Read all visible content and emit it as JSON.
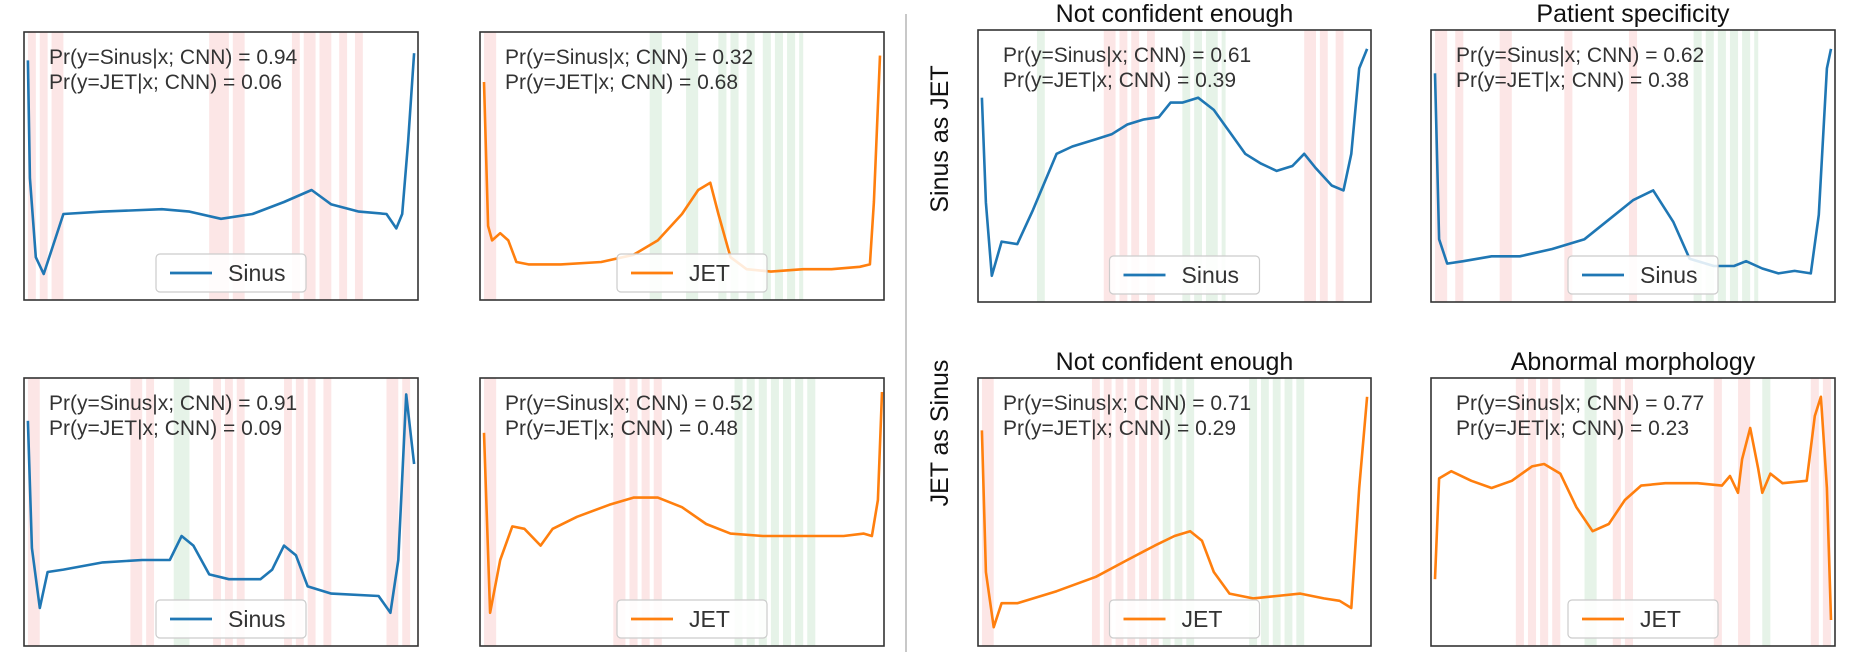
{
  "figure": {
    "row_labels": [
      "Sinus as JET",
      "JET as Sinus"
    ],
    "colors": {
      "Sinus": "#1f77b4",
      "JET": "#ff7f0e",
      "important": "#e8403a",
      "supporting": "#3aa64a"
    }
  },
  "chart_data": [
    {
      "type": "line",
      "title": "",
      "series": [
        {
          "name": "Sinus"
        }
      ],
      "legend": "lower-center",
      "ylim": [
        0,
        1
      ],
      "annotations": [
        "Pr(y=Sinus|x; CNN) = 0.94",
        "Pr(y=JET|x; CNN) = 0.06"
      ],
      "points": [
        [
          0.01,
          0.94
        ],
        [
          0.015,
          0.45
        ],
        [
          0.03,
          0.12
        ],
        [
          0.05,
          0.05
        ],
        [
          0.07,
          0.15
        ],
        [
          0.1,
          0.3
        ],
        [
          0.2,
          0.31
        ],
        [
          0.35,
          0.32
        ],
        [
          0.42,
          0.31
        ],
        [
          0.5,
          0.28
        ],
        [
          0.58,
          0.3
        ],
        [
          0.66,
          0.35
        ],
        [
          0.73,
          0.4
        ],
        [
          0.78,
          0.34
        ],
        [
          0.85,
          0.31
        ],
        [
          0.92,
          0.3
        ],
        [
          0.945,
          0.24
        ],
        [
          0.96,
          0.3
        ],
        [
          0.975,
          0.6
        ],
        [
          0.99,
          0.97
        ]
      ],
      "red_bands": [
        [
          0.01,
          0.03
        ],
        [
          0.04,
          0.06
        ],
        [
          0.07,
          0.1
        ],
        [
          0.47,
          0.52
        ],
        [
          0.53,
          0.56
        ],
        [
          0.68,
          0.7
        ],
        [
          0.71,
          0.74
        ],
        [
          0.75,
          0.78
        ],
        [
          0.8,
          0.82
        ],
        [
          0.84,
          0.86
        ]
      ],
      "green_bands": []
    },
    {
      "type": "line",
      "title": "",
      "series": [
        {
          "name": "JET"
        }
      ],
      "legend": "lower-center",
      "ylim": [
        0,
        1
      ],
      "annotations": [
        "Pr(y=Sinus|x; CNN) = 0.32",
        "Pr(y=JET|x; CNN) = 0.68"
      ],
      "points": [
        [
          0.01,
          0.85
        ],
        [
          0.02,
          0.25
        ],
        [
          0.03,
          0.19
        ],
        [
          0.05,
          0.22
        ],
        [
          0.07,
          0.19
        ],
        [
          0.09,
          0.1
        ],
        [
          0.12,
          0.09
        ],
        [
          0.2,
          0.09
        ],
        [
          0.3,
          0.1
        ],
        [
          0.38,
          0.13
        ],
        [
          0.44,
          0.19
        ],
        [
          0.5,
          0.3
        ],
        [
          0.54,
          0.4
        ],
        [
          0.57,
          0.43
        ],
        [
          0.59,
          0.3
        ],
        [
          0.62,
          0.12
        ],
        [
          0.66,
          0.07
        ],
        [
          0.72,
          0.06
        ],
        [
          0.8,
          0.07
        ],
        [
          0.87,
          0.07
        ],
        [
          0.94,
          0.08
        ],
        [
          0.965,
          0.09
        ],
        [
          0.975,
          0.35
        ],
        [
          0.99,
          0.96
        ]
      ],
      "red_bands": [
        [
          0.01,
          0.04
        ]
      ],
      "green_bands": [
        [
          0.42,
          0.45
        ],
        [
          0.51,
          0.54
        ],
        [
          0.59,
          0.61
        ],
        [
          0.62,
          0.64
        ],
        [
          0.66,
          0.68
        ],
        [
          0.7,
          0.72
        ],
        [
          0.73,
          0.75
        ],
        [
          0.76,
          0.78
        ],
        [
          0.79,
          0.8
        ]
      ]
    },
    {
      "type": "line",
      "title": "Not confident enough",
      "series": [
        {
          "name": "Sinus"
        }
      ],
      "legend": "lower-center",
      "ylim": [
        0,
        1
      ],
      "annotations": [
        "Pr(y=Sinus|x; CNN) = 0.61",
        "Pr(y=JET|x; CNN) = 0.39"
      ],
      "points": [
        [
          0.01,
          0.78
        ],
        [
          0.02,
          0.35
        ],
        [
          0.035,
          0.05
        ],
        [
          0.06,
          0.19
        ],
        [
          0.1,
          0.18
        ],
        [
          0.14,
          0.32
        ],
        [
          0.2,
          0.55
        ],
        [
          0.24,
          0.58
        ],
        [
          0.3,
          0.61
        ],
        [
          0.34,
          0.63
        ],
        [
          0.38,
          0.67
        ],
        [
          0.42,
          0.69
        ],
        [
          0.46,
          0.7
        ],
        [
          0.49,
          0.76
        ],
        [
          0.52,
          0.76
        ],
        [
          0.56,
          0.78
        ],
        [
          0.6,
          0.73
        ],
        [
          0.64,
          0.64
        ],
        [
          0.68,
          0.55
        ],
        [
          0.72,
          0.51
        ],
        [
          0.76,
          0.48
        ],
        [
          0.8,
          0.5
        ],
        [
          0.83,
          0.55
        ],
        [
          0.86,
          0.49
        ],
        [
          0.9,
          0.42
        ],
        [
          0.93,
          0.4
        ],
        [
          0.95,
          0.55
        ],
        [
          0.97,
          0.9
        ],
        [
          0.99,
          0.98
        ]
      ],
      "red_bands": [
        [
          0.32,
          0.35
        ],
        [
          0.36,
          0.38
        ],
        [
          0.39,
          0.41
        ],
        [
          0.43,
          0.45
        ],
        [
          0.83,
          0.86
        ],
        [
          0.87,
          0.89
        ],
        [
          0.91,
          0.93
        ]
      ],
      "green_bands": [
        [
          0.15,
          0.17
        ],
        [
          0.52,
          0.54
        ],
        [
          0.55,
          0.57
        ],
        [
          0.58,
          0.61
        ],
        [
          0.62,
          0.63
        ]
      ]
    },
    {
      "type": "line",
      "title": "Patient specificity",
      "series": [
        {
          "name": "Sinus"
        }
      ],
      "legend": "lower-center",
      "ylim": [
        0,
        1
      ],
      "annotations": [
        "Pr(y=Sinus|x; CNN) = 0.62",
        "Pr(y=JET|x; CNN) = 0.38"
      ],
      "points": [
        [
          0.01,
          0.88
        ],
        [
          0.02,
          0.2
        ],
        [
          0.04,
          0.1
        ],
        [
          0.08,
          0.11
        ],
        [
          0.15,
          0.13
        ],
        [
          0.22,
          0.13
        ],
        [
          0.3,
          0.16
        ],
        [
          0.38,
          0.2
        ],
        [
          0.44,
          0.28
        ],
        [
          0.5,
          0.36
        ],
        [
          0.55,
          0.4
        ],
        [
          0.6,
          0.27
        ],
        [
          0.64,
          0.12
        ],
        [
          0.7,
          0.09
        ],
        [
          0.75,
          0.09
        ],
        [
          0.78,
          0.11
        ],
        [
          0.82,
          0.08
        ],
        [
          0.86,
          0.06
        ],
        [
          0.9,
          0.07
        ],
        [
          0.94,
          0.06
        ],
        [
          0.96,
          0.3
        ],
        [
          0.98,
          0.9
        ],
        [
          0.99,
          0.98
        ]
      ],
      "red_bands": [
        [
          0.01,
          0.04
        ],
        [
          0.06,
          0.08
        ],
        [
          0.17,
          0.2
        ],
        [
          0.33,
          0.35
        ],
        [
          0.49,
          0.51
        ]
      ],
      "green_bands": [
        [
          0.65,
          0.67
        ],
        [
          0.68,
          0.7
        ],
        [
          0.71,
          0.73
        ],
        [
          0.74,
          0.76
        ],
        [
          0.77,
          0.79
        ],
        [
          0.8,
          0.81
        ]
      ]
    },
    {
      "type": "line",
      "title": "",
      "series": [
        {
          "name": "Sinus"
        }
      ],
      "legend": "lower-center",
      "ylim": [
        0,
        1
      ],
      "annotations": [
        "Pr(y=Sinus|x; CNN) = 0.91",
        "Pr(y=JET|x; CNN) = 0.09"
      ],
      "points": [
        [
          0.01,
          0.88
        ],
        [
          0.02,
          0.35
        ],
        [
          0.04,
          0.1
        ],
        [
          0.06,
          0.25
        ],
        [
          0.1,
          0.26
        ],
        [
          0.2,
          0.29
        ],
        [
          0.3,
          0.3
        ],
        [
          0.37,
          0.3
        ],
        [
          0.4,
          0.4
        ],
        [
          0.43,
          0.36
        ],
        [
          0.47,
          0.24
        ],
        [
          0.52,
          0.22
        ],
        [
          0.6,
          0.22
        ],
        [
          0.63,
          0.26
        ],
        [
          0.66,
          0.36
        ],
        [
          0.69,
          0.32
        ],
        [
          0.72,
          0.19
        ],
        [
          0.78,
          0.16
        ],
        [
          0.9,
          0.15
        ],
        [
          0.93,
          0.08
        ],
        [
          0.95,
          0.3
        ],
        [
          0.97,
          0.99
        ],
        [
          0.99,
          0.7
        ]
      ],
      "red_bands": [
        [
          0.01,
          0.04
        ],
        [
          0.27,
          0.3
        ],
        [
          0.31,
          0.33
        ],
        [
          0.48,
          0.5
        ],
        [
          0.51,
          0.53
        ],
        [
          0.54,
          0.56
        ],
        [
          0.66,
          0.68
        ],
        [
          0.69,
          0.71
        ],
        [
          0.72,
          0.74
        ],
        [
          0.76,
          0.78
        ],
        [
          0.92,
          0.95
        ],
        [
          0.96,
          0.98
        ]
      ],
      "green_bands": [
        [
          0.38,
          0.42
        ]
      ]
    },
    {
      "type": "line",
      "title": "",
      "series": [
        {
          "name": "JET"
        }
      ],
      "legend": "lower-center",
      "ylim": [
        0,
        1
      ],
      "annotations": [
        "Pr(y=Sinus|x; CNN) = 0.52",
        "Pr(y=JET|x; CNN) = 0.48"
      ],
      "points": [
        [
          0.01,
          0.83
        ],
        [
          0.025,
          0.08
        ],
        [
          0.05,
          0.3
        ],
        [
          0.08,
          0.44
        ],
        [
          0.11,
          0.43
        ],
        [
          0.15,
          0.36
        ],
        [
          0.18,
          0.43
        ],
        [
          0.24,
          0.48
        ],
        [
          0.32,
          0.53
        ],
        [
          0.38,
          0.56
        ],
        [
          0.44,
          0.56
        ],
        [
          0.5,
          0.52
        ],
        [
          0.56,
          0.45
        ],
        [
          0.62,
          0.41
        ],
        [
          0.7,
          0.4
        ],
        [
          0.8,
          0.4
        ],
        [
          0.9,
          0.4
        ],
        [
          0.95,
          0.41
        ],
        [
          0.97,
          0.4
        ],
        [
          0.985,
          0.55
        ],
        [
          0.995,
          1.0
        ]
      ],
      "red_bands": [
        [
          0.01,
          0.04
        ],
        [
          0.33,
          0.36
        ],
        [
          0.37,
          0.39
        ],
        [
          0.4,
          0.42
        ],
        [
          0.43,
          0.45
        ]
      ],
      "green_bands": [
        [
          0.63,
          0.65
        ],
        [
          0.66,
          0.68
        ],
        [
          0.69,
          0.71
        ],
        [
          0.72,
          0.74
        ],
        [
          0.75,
          0.77
        ],
        [
          0.78,
          0.8
        ],
        [
          0.81,
          0.83
        ]
      ]
    },
    {
      "type": "line",
      "title": "Not confident enough",
      "series": [
        {
          "name": "JET"
        }
      ],
      "legend": "lower-center",
      "ylim": [
        0,
        1
      ],
      "annotations": [
        "Pr(y=Sinus|x; CNN) = 0.71",
        "Pr(y=JET|x; CNN) = 0.29"
      ],
      "points": [
        [
          0.01,
          0.84
        ],
        [
          0.02,
          0.25
        ],
        [
          0.04,
          0.02
        ],
        [
          0.06,
          0.12
        ],
        [
          0.1,
          0.12
        ],
        [
          0.2,
          0.17
        ],
        [
          0.3,
          0.23
        ],
        [
          0.38,
          0.3
        ],
        [
          0.45,
          0.36
        ],
        [
          0.5,
          0.4
        ],
        [
          0.54,
          0.42
        ],
        [
          0.57,
          0.38
        ],
        [
          0.6,
          0.25
        ],
        [
          0.64,
          0.16
        ],
        [
          0.7,
          0.14
        ],
        [
          0.76,
          0.15
        ],
        [
          0.82,
          0.16
        ],
        [
          0.88,
          0.14
        ],
        [
          0.92,
          0.13
        ],
        [
          0.95,
          0.1
        ],
        [
          0.97,
          0.6
        ],
        [
          0.99,
          0.98
        ]
      ],
      "red_bands": [
        [
          0.01,
          0.04
        ],
        [
          0.29,
          0.31
        ],
        [
          0.32,
          0.34
        ],
        [
          0.35,
          0.37
        ],
        [
          0.38,
          0.4
        ],
        [
          0.41,
          0.43
        ],
        [
          0.44,
          0.46
        ]
      ],
      "green_bands": [
        [
          0.47,
          0.49
        ],
        [
          0.5,
          0.52
        ],
        [
          0.53,
          0.55
        ],
        [
          0.69,
          0.71
        ],
        [
          0.72,
          0.74
        ],
        [
          0.75,
          0.77
        ],
        [
          0.78,
          0.8
        ],
        [
          0.81,
          0.83
        ]
      ]
    },
    {
      "type": "line",
      "title": "Abnormal morphology",
      "series": [
        {
          "name": "JET"
        }
      ],
      "legend": "lower-center",
      "ylim": [
        0,
        1
      ],
      "annotations": [
        "Pr(y=Sinus|x; CNN) = 0.77",
        "Pr(y=JET|x; CNN) = 0.23"
      ],
      "points": [
        [
          0.01,
          0.22
        ],
        [
          0.02,
          0.64
        ],
        [
          0.05,
          0.67
        ],
        [
          0.1,
          0.63
        ],
        [
          0.15,
          0.6
        ],
        [
          0.2,
          0.63
        ],
        [
          0.25,
          0.69
        ],
        [
          0.28,
          0.7
        ],
        [
          0.32,
          0.66
        ],
        [
          0.36,
          0.52
        ],
        [
          0.4,
          0.42
        ],
        [
          0.44,
          0.45
        ],
        [
          0.48,
          0.55
        ],
        [
          0.52,
          0.61
        ],
        [
          0.58,
          0.62
        ],
        [
          0.66,
          0.62
        ],
        [
          0.72,
          0.61
        ],
        [
          0.74,
          0.65
        ],
        [
          0.76,
          0.58
        ],
        [
          0.77,
          0.72
        ],
        [
          0.79,
          0.85
        ],
        [
          0.81,
          0.68
        ],
        [
          0.82,
          0.58
        ],
        [
          0.84,
          0.66
        ],
        [
          0.87,
          0.62
        ],
        [
          0.93,
          0.63
        ],
        [
          0.95,
          0.9
        ],
        [
          0.965,
          0.98
        ],
        [
          0.98,
          0.6
        ],
        [
          0.99,
          0.05
        ]
      ],
      "red_bands": [
        [
          0.21,
          0.23
        ],
        [
          0.24,
          0.26
        ],
        [
          0.27,
          0.29
        ],
        [
          0.3,
          0.32
        ],
        [
          0.45,
          0.47
        ],
        [
          0.48,
          0.5
        ],
        [
          0.7,
          0.72
        ],
        [
          0.76,
          0.79
        ],
        [
          0.94,
          0.96
        ],
        [
          0.97,
          0.99
        ]
      ],
      "green_bands": [
        [
          0.38,
          0.41
        ],
        [
          0.82,
          0.84
        ]
      ]
    }
  ]
}
